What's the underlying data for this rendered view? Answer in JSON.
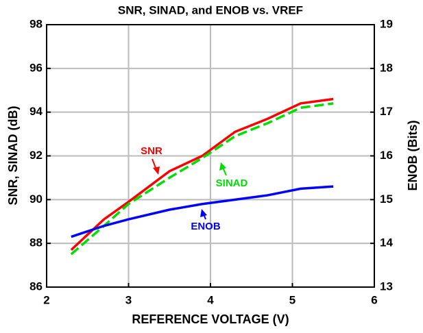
{
  "chart_data": {
    "type": "line",
    "title": "SNR, SINAD, and ENOB vs. VREF",
    "x_label": "REFERENCE VOLTAGE (V)",
    "y_label": "SNR, SINAD (dB)",
    "y2_label": "ENOB (Bits)",
    "x": [
      2.3,
      2.7,
      3.0,
      3.5,
      3.9,
      4.3,
      4.7,
      5.1,
      5.5
    ],
    "series": [
      {
        "name": "SNR",
        "color": "#ff0000",
        "values": [
          87.7,
          89.1,
          89.9,
          91.3,
          92.0,
          93.1,
          93.7,
          94.4,
          94.6
        ]
      },
      {
        "name": "SINAD",
        "color": "#00dd00",
        "dashed": true,
        "values": [
          87.5,
          88.8,
          89.8,
          91.0,
          91.9,
          92.9,
          93.5,
          94.2,
          94.4
        ]
      },
      {
        "name": "ENOB",
        "color": "#0000ff",
        "axis": "y2",
        "values": [
          14.15,
          14.4,
          14.55,
          14.77,
          14.9,
          15.0,
          15.1,
          15.25,
          15.3
        ]
      }
    ],
    "xlim": [
      2,
      6
    ],
    "xticks": [
      2,
      3,
      4,
      5,
      6
    ],
    "ylim": [
      86,
      98
    ],
    "yticks": [
      86,
      88,
      90,
      92,
      94,
      96,
      98
    ],
    "y2lim": [
      13,
      19
    ],
    "y2ticks": [
      13,
      14,
      15,
      16,
      17,
      18,
      19
    ],
    "grid": true
  }
}
